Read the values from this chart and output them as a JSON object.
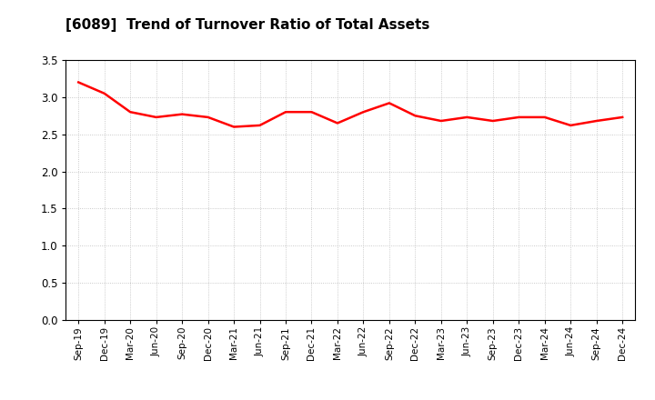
{
  "title": "[6089]  Trend of Turnover Ratio of Total Assets",
  "line_color": "#FF0000",
  "line_width": 1.8,
  "background_color": "#FFFFFF",
  "grid_color": "#BBBBBB",
  "ylim": [
    0.0,
    3.5
  ],
  "yticks": [
    0.0,
    0.5,
    1.0,
    1.5,
    2.0,
    2.5,
    3.0,
    3.5
  ],
  "labels": [
    "Sep-19",
    "Dec-19",
    "Mar-20",
    "Jun-20",
    "Sep-20",
    "Dec-20",
    "Mar-21",
    "Jun-21",
    "Sep-21",
    "Dec-21",
    "Mar-22",
    "Jun-22",
    "Sep-22",
    "Dec-22",
    "Mar-23",
    "Jun-23",
    "Sep-23",
    "Dec-23",
    "Mar-24",
    "Jun-24",
    "Sep-24",
    "Dec-24"
  ],
  "values": [
    3.2,
    3.05,
    2.8,
    2.73,
    2.77,
    2.73,
    2.6,
    2.62,
    2.8,
    2.8,
    2.65,
    2.8,
    2.92,
    2.75,
    2.68,
    2.73,
    2.68,
    2.73,
    2.73,
    2.62,
    2.68,
    2.73
  ],
  "figsize": [
    7.2,
    4.4
  ],
  "dpi": 100
}
